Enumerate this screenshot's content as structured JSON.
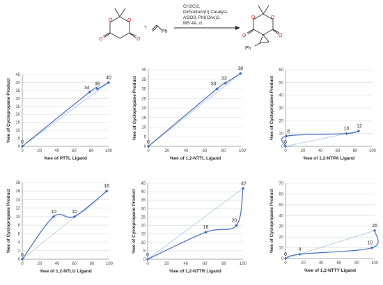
{
  "scheme": {
    "plus": "+",
    "reagent_ph": "Ph",
    "product_ph": "Ph",
    "atom_o": "O",
    "conditions": [
      "CH2Cl2,",
      "Dirhodium(II) Catalyst,",
      "Al2O3, PhI(OAc)2,",
      "MS 4A, rt."
    ]
  },
  "colors": {
    "series": "#3a66b5",
    "reference": "#a9bde0",
    "grid": "#d9d9d9",
    "axis": "#8c8c8c"
  },
  "chart_data": [
    {
      "type": "line",
      "xlabel": "%ee of PTTL Ligand",
      "ylabel": "%ee of Cyclopropane Product",
      "xlim": [
        0,
        100
      ],
      "ylim": [
        0,
        45
      ],
      "xticks": [
        0,
        20,
        40,
        60,
        80,
        100
      ],
      "yticks": [
        0,
        5,
        10,
        15,
        20,
        25,
        30,
        35,
        40,
        45
      ],
      "grid": true,
      "x": [
        0,
        78,
        87,
        100
      ],
      "y": [
        0,
        34,
        36,
        40
      ],
      "labels": [
        "0",
        "34",
        "36",
        "40"
      ]
    },
    {
      "type": "line",
      "xlabel": "%ee of 1,2-NTTL Ligand",
      "ylabel": "%ee of Cyclopropane Product",
      "xlim": [
        0,
        100
      ],
      "ylim": [
        0,
        40
      ],
      "xticks": [
        0,
        20,
        40,
        60,
        80,
        100
      ],
      "yticks": [
        0,
        5,
        10,
        15,
        20,
        25,
        30,
        35,
        40
      ],
      "grid": true,
      "x": [
        0,
        73,
        82,
        98
      ],
      "y": [
        0,
        30,
        33,
        38
      ],
      "labels": [
        "0",
        "30",
        "33",
        "38"
      ]
    },
    {
      "type": "line",
      "xlabel": "%ee of 1,2-NTPA Ligand",
      "ylabel": "%ee of Cyclopropane Product",
      "xlim": [
        0,
        100
      ],
      "ylim": [
        0,
        60
      ],
      "xticks": [
        0,
        20,
        40,
        60,
        80,
        100
      ],
      "yticks": [
        0,
        10,
        20,
        30,
        40,
        50,
        60
      ],
      "grid": true,
      "x": [
        0,
        1,
        70,
        84
      ],
      "y": [
        0,
        8,
        10,
        12
      ],
      "labels": [
        "0",
        "8",
        "10",
        "12"
      ]
    },
    {
      "type": "line",
      "xlabel": "%ee of 1,2-NTLU Ligand",
      "ylabel": "%ee of Cyclopropane Product",
      "xlim": [
        0,
        100
      ],
      "ylim": [
        0,
        18
      ],
      "xticks": [
        0,
        20,
        40,
        60,
        80,
        100
      ],
      "yticks": [
        0,
        2,
        4,
        6,
        8,
        10,
        12,
        14,
        16,
        18
      ],
      "grid": true,
      "x": [
        0,
        36,
        60,
        97
      ],
      "y": [
        0,
        10,
        10,
        16
      ],
      "labels": [
        "0",
        "10",
        "10",
        "16"
      ]
    },
    {
      "type": "line",
      "xlabel": "%ee of 1,2-NTTR Ligand",
      "ylabel": "%ee of Cyclopropane Product",
      "xlim": [
        0,
        100
      ],
      "ylim": [
        0,
        45
      ],
      "xticks": [
        0,
        20,
        40,
        60,
        80,
        100
      ],
      "yticks": [
        0,
        5,
        10,
        15,
        20,
        25,
        30,
        35,
        40,
        45
      ],
      "grid": true,
      "x": [
        0,
        61,
        93,
        100
      ],
      "y": [
        0,
        16,
        20,
        42
      ],
      "labels": [
        "0",
        "16",
        "20",
        "42"
      ]
    },
    {
      "type": "line",
      "xlabel": "%ee of 1,2-NTTY Ligand",
      "ylabel": "%ee of Cyclopropane Product",
      "xlim": [
        0,
        100
      ],
      "ylim": [
        0,
        70
      ],
      "xticks": [
        0,
        20,
        40,
        60,
        80,
        100
      ],
      "yticks": [
        0,
        10,
        20,
        30,
        40,
        50,
        60,
        70
      ],
      "grid": true,
      "x": [
        0,
        16,
        97,
        100
      ],
      "y": [
        0,
        4,
        10,
        26
      ],
      "labels": [
        "0",
        "4",
        "10",
        "26"
      ]
    }
  ]
}
